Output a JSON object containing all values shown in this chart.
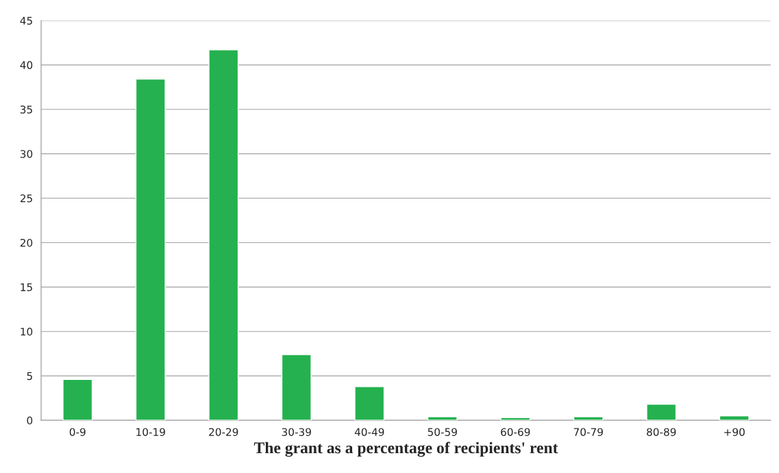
{
  "chart_data": {
    "type": "bar",
    "xlabel": "The grant as a percentage of recipients' rent",
    "categories": [
      "0-9",
      "10-19",
      "20-29",
      "30-39",
      "40-49",
      "50-59",
      "60-69",
      "70-79",
      "80-89",
      "+90"
    ],
    "values": [
      4.6,
      38.4,
      41.7,
      7.4,
      3.8,
      0.4,
      0.3,
      0.4,
      1.8,
      0.5
    ],
    "color": "#25b14f",
    "ylim": [
      0,
      45
    ],
    "yticks": [
      0,
      5,
      10,
      15,
      20,
      25,
      30,
      35,
      40,
      45
    ],
    "grid": "y"
  }
}
